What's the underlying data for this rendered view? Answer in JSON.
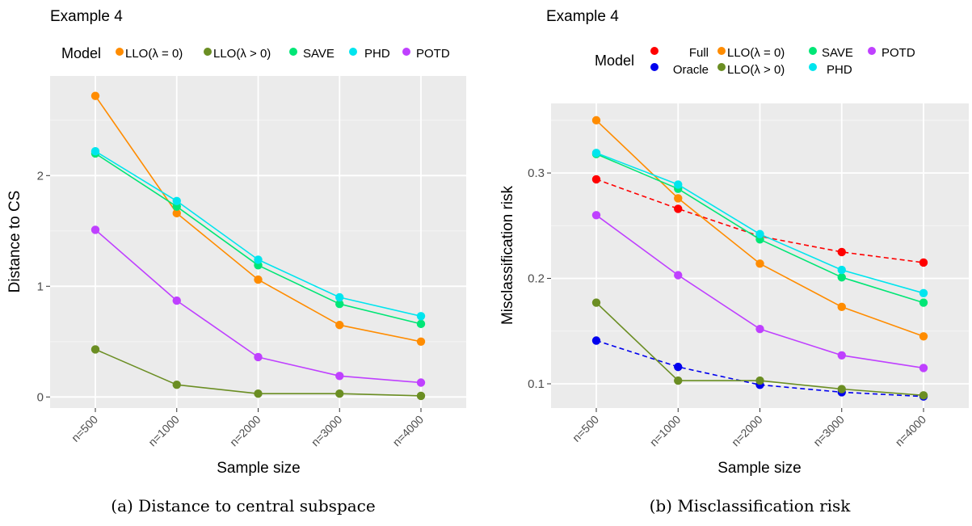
{
  "panels": [
    {
      "title": "Example 4",
      "caption": "(a) Distance to central subspace",
      "legend_title": "Model"
    },
    {
      "title": "Example 4",
      "caption": "(b) Misclassification risk",
      "legend_title": "Model"
    }
  ],
  "chart_data": [
    {
      "type": "line",
      "title": "Example 4",
      "xlabel": "Sample size",
      "ylabel": "Distance to CS",
      "categories": [
        "n=500",
        "n=1000",
        "n=2000",
        "n=3000",
        "n=4000"
      ],
      "ylim": [
        -0.1,
        2.9
      ],
      "yticks": [
        0,
        1,
        2
      ],
      "grid": true,
      "legend_position": "top",
      "series": [
        {
          "name": "LLO(λ = 0)",
          "color": "#ff8c00",
          "dashed": false,
          "values": [
            2.72,
            1.66,
            1.06,
            0.65,
            0.5
          ]
        },
        {
          "name": "LLO(λ > 0)",
          "color": "#6b8e23",
          "dashed": false,
          "values": [
            0.43,
            0.11,
            0.03,
            0.03,
            0.01
          ]
        },
        {
          "name": "SAVE",
          "color": "#00e676",
          "dashed": false,
          "values": [
            2.2,
            1.72,
            1.19,
            0.84,
            0.66
          ]
        },
        {
          "name": "PHD",
          "color": "#00e5ee",
          "dashed": false,
          "values": [
            2.22,
            1.77,
            1.24,
            0.9,
            0.73
          ]
        },
        {
          "name": "POTD",
          "color": "#bf40ff",
          "dashed": false,
          "values": [
            1.51,
            0.87,
            0.36,
            0.19,
            0.13
          ]
        }
      ]
    },
    {
      "type": "line",
      "title": "Example 4",
      "xlabel": "Sample size",
      "ylabel": "Misclassification risk",
      "categories": [
        "n=500",
        "n=1000",
        "n=2000",
        "n=3000",
        "n=4000"
      ],
      "ylim": [
        0.077,
        0.366
      ],
      "yticks": [
        0.1,
        0.2,
        0.3
      ],
      "grid": true,
      "legend_position": "top",
      "series": [
        {
          "name": "Full",
          "color": "#ff0000",
          "dashed": true,
          "values": [
            0.294,
            0.266,
            0.24,
            0.225,
            0.215
          ]
        },
        {
          "name": "Oracle",
          "color": "#0000ee",
          "dashed": true,
          "values": [
            0.141,
            0.116,
            0.099,
            0.092,
            0.088
          ]
        },
        {
          "name": "LLO(λ = 0)",
          "color": "#ff8c00",
          "dashed": false,
          "values": [
            0.35,
            0.276,
            0.214,
            0.173,
            0.145
          ]
        },
        {
          "name": "LLO(λ > 0)",
          "color": "#6b8e23",
          "dashed": false,
          "values": [
            0.177,
            0.103,
            0.103,
            0.095,
            0.089
          ]
        },
        {
          "name": "SAVE",
          "color": "#00e676",
          "dashed": false,
          "values": [
            0.318,
            0.285,
            0.237,
            0.201,
            0.177
          ]
        },
        {
          "name": "PHD",
          "color": "#00e5ee",
          "dashed": false,
          "values": [
            0.319,
            0.289,
            0.242,
            0.208,
            0.186
          ]
        },
        {
          "name": "POTD",
          "color": "#bf40ff",
          "dashed": false,
          "values": [
            0.26,
            0.203,
            0.152,
            0.127,
            0.115
          ]
        }
      ]
    }
  ]
}
